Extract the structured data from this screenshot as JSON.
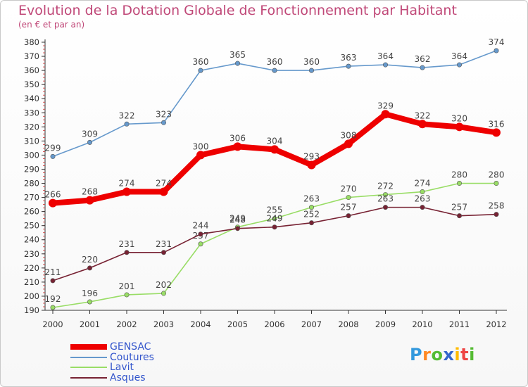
{
  "header": {
    "title": "Evolution de la Dotation Globale de Fonctionnement par Habitant",
    "subtitle": "(en € et par an)"
  },
  "logo": {
    "text": "Proxiti",
    "letters": [
      "P",
      "r",
      "o",
      "x",
      "i",
      "t",
      "i"
    ],
    "colors": [
      "#3399dd",
      "#ff8822",
      "#55bb33",
      "#3366cc",
      "#ffbb00",
      "#ee4444",
      "#55bb33"
    ]
  },
  "chart_data": {
    "type": "line",
    "title": "Evolution de la Dotation Globale de Fonctionnement par Habitant",
    "subtitle": "(en € et par an)",
    "xlabel": "",
    "ylabel": "",
    "x": [
      2000,
      2001,
      2002,
      2003,
      2004,
      2005,
      2006,
      2007,
      2008,
      2009,
      2010,
      2011,
      2012
    ],
    "ylim": [
      190,
      380
    ],
    "yticks": [
      190,
      200,
      210,
      220,
      230,
      240,
      250,
      260,
      270,
      280,
      290,
      300,
      310,
      320,
      330,
      340,
      350,
      360,
      370,
      380
    ],
    "grid": false,
    "legend": "bottom-left",
    "series": [
      {
        "name": "GENSAC",
        "color": "#ee0000",
        "emphasis": true,
        "values": [
          266,
          268,
          274,
          274,
          300,
          306,
          304,
          293,
          308,
          329,
          322,
          320,
          316
        ]
      },
      {
        "name": "Coutures",
        "color": "#6699cc",
        "emphasis": false,
        "values": [
          299,
          309,
          322,
          323,
          360,
          365,
          360,
          360,
          363,
          364,
          362,
          364,
          374
        ]
      },
      {
        "name": "Lavit",
        "color": "#99dd66",
        "emphasis": false,
        "values": [
          192,
          196,
          201,
          202,
          237,
          249,
          255,
          263,
          270,
          272,
          274,
          280,
          280
        ]
      },
      {
        "name": "Asques",
        "color": "#772233",
        "emphasis": false,
        "values": [
          211,
          220,
          231,
          231,
          244,
          248,
          249,
          252,
          257,
          263,
          263,
          257,
          258
        ]
      }
    ]
  }
}
